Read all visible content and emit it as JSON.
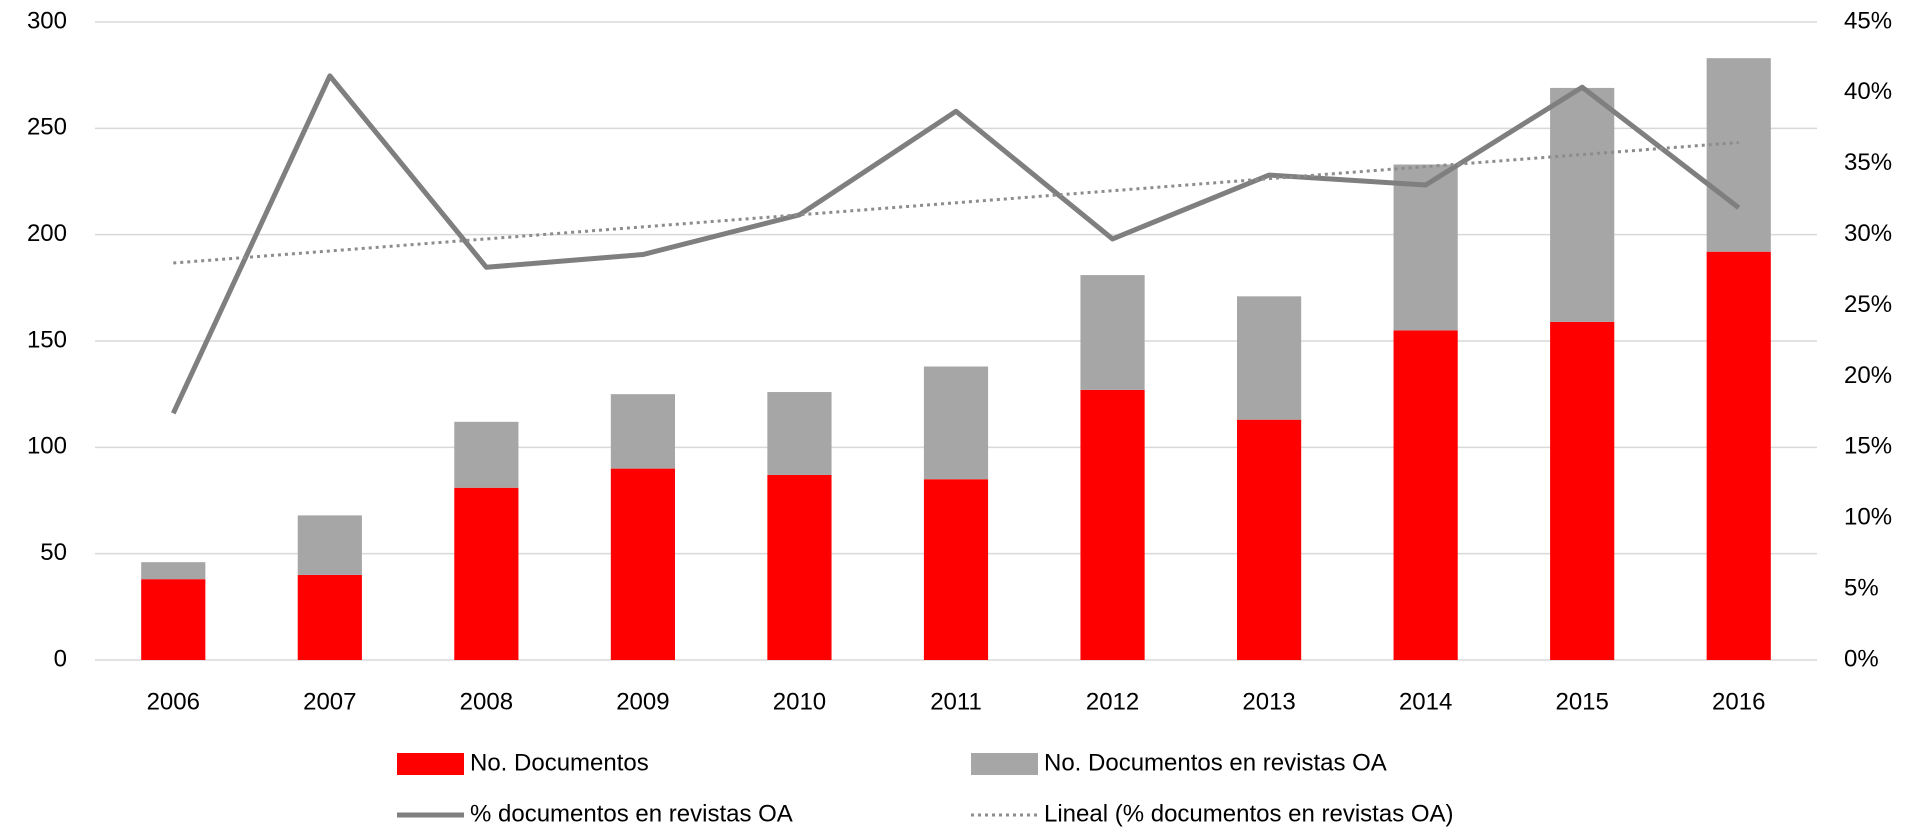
{
  "chart_data": {
    "type": "bar_line",
    "categories": [
      "2006",
      "2007",
      "2008",
      "2009",
      "2010",
      "2011",
      "2012",
      "2013",
      "2014",
      "2015",
      "2016"
    ],
    "series": [
      {
        "name": "No. Documentos",
        "color": "#ff0000",
        "kind": "bar",
        "values": [
          38,
          40,
          81,
          90,
          87,
          85,
          127,
          113,
          155,
          159,
          192
        ]
      },
      {
        "name": "No. Documentos en revistas OA",
        "color": "#a6a6a6",
        "kind": "bar",
        "values": [
          8,
          28,
          31,
          35,
          39,
          53,
          54,
          58,
          78,
          110,
          91
        ]
      },
      {
        "name": "% documentos en revistas OA",
        "color": "#7f7f7f",
        "kind": "line",
        "axis": "y2",
        "values": [
          17.4,
          41.2,
          27.7,
          28.6,
          31.4,
          38.7,
          29.7,
          34.2,
          33.5,
          40.4,
          31.9
        ]
      },
      {
        "name": "Lineal (% documentos en revistas OA)",
        "color": "#8c8c8c",
        "kind": "line",
        "dotted": true,
        "axis": "y2",
        "values": [
          28.0,
          28.85,
          29.7,
          30.55,
          31.4,
          32.25,
          33.1,
          33.95,
          34.8,
          35.65,
          36.5
        ]
      }
    ],
    "stacked": true,
    "ylim": [
      0,
      300
    ],
    "yticks": [
      0,
      50,
      100,
      150,
      200,
      250,
      300
    ],
    "y2lim": [
      0,
      45
    ],
    "y2ticks": [
      {
        "value": 0,
        "label": "0%"
      },
      {
        "value": 5,
        "label": "5%"
      },
      {
        "value": 10,
        "label": "10%"
      },
      {
        "value": 15,
        "label": "15%"
      },
      {
        "value": 20,
        "label": "20%"
      },
      {
        "value": 25,
        "label": "25%"
      },
      {
        "value": 30,
        "label": "30%"
      },
      {
        "value": 35,
        "label": "35%"
      },
      {
        "value": 40,
        "label": "40%"
      },
      {
        "value": 45,
        "label": "45%"
      }
    ],
    "grid": true,
    "legend": "bottom"
  }
}
